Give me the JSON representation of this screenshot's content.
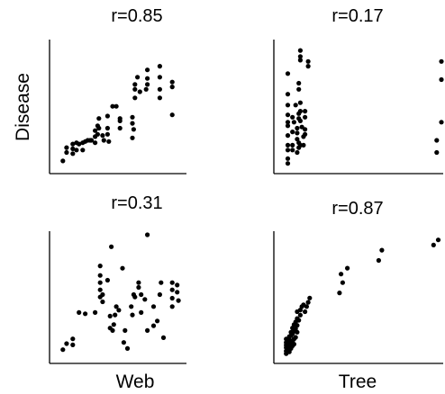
{
  "chart_data": [
    {
      "type": "scatter",
      "title": "r=0.85",
      "xlabel": "",
      "ylabel": "Disease",
      "points": [
        [
          2,
          3
        ],
        [
          5,
          14
        ],
        [
          5,
          10
        ],
        [
          10,
          17
        ],
        [
          10,
          13
        ],
        [
          10,
          9
        ],
        [
          13,
          12
        ],
        [
          13,
          18
        ],
        [
          15,
          17
        ],
        [
          18,
          12
        ],
        [
          18,
          18
        ],
        [
          20,
          19
        ],
        [
          22,
          20
        ],
        [
          24,
          20
        ],
        [
          25,
          20
        ],
        [
          28,
          23
        ],
        [
          28,
          18
        ],
        [
          28,
          28
        ],
        [
          30,
          25
        ],
        [
          30,
          32
        ],
        [
          31,
          38
        ],
        [
          31,
          30
        ],
        [
          34,
          24
        ],
        [
          35,
          20
        ],
        [
          38,
          40
        ],
        [
          38,
          30
        ],
        [
          38,
          25
        ],
        [
          39,
          19
        ],
        [
          42,
          48
        ],
        [
          45,
          48
        ],
        [
          48,
          38
        ],
        [
          48,
          30
        ],
        [
          48,
          36
        ],
        [
          58,
          39
        ],
        [
          58,
          34
        ],
        [
          58,
          22
        ],
        [
          59,
          29
        ],
        [
          60,
          55
        ],
        [
          60,
          62
        ],
        [
          60,
          66
        ],
        [
          62,
          72
        ],
        [
          64,
          60
        ],
        [
          69,
          62
        ],
        [
          70,
          78
        ],
        [
          70,
          71
        ],
        [
          70,
          66
        ],
        [
          80,
          81
        ],
        [
          80,
          72
        ],
        [
          80,
          62
        ],
        [
          80,
          55
        ],
        [
          90,
          68
        ],
        [
          90,
          64
        ],
        [
          90,
          41
        ]
      ]
    },
    {
      "type": "scatter",
      "title": "r=0.17",
      "xlabel": "",
      "ylabel": "",
      "points": [
        [
          2,
          1
        ],
        [
          2,
          5
        ],
        [
          2,
          12
        ],
        [
          2,
          16
        ],
        [
          2,
          24
        ],
        [
          2,
          32
        ],
        [
          2,
          35
        ],
        [
          2,
          41
        ],
        [
          2,
          49
        ],
        [
          2,
          58
        ],
        [
          2,
          75
        ],
        [
          5,
          12
        ],
        [
          5,
          16
        ],
        [
          5,
          27
        ],
        [
          5,
          39
        ],
        [
          6,
          35
        ],
        [
          7,
          49
        ],
        [
          8,
          10
        ],
        [
          8,
          21
        ],
        [
          8,
          26
        ],
        [
          8,
          30
        ],
        [
          9,
          14
        ],
        [
          9,
          18
        ],
        [
          9,
          38
        ],
        [
          9,
          42
        ],
        [
          9,
          62
        ],
        [
          9,
          67
        ],
        [
          10,
          16
        ],
        [
          10,
          36
        ],
        [
          10,
          44
        ],
        [
          10,
          51
        ],
        [
          10,
          86
        ],
        [
          10,
          89
        ],
        [
          10,
          94
        ],
        [
          11,
          31
        ],
        [
          12,
          16
        ],
        [
          12,
          23
        ],
        [
          13,
          25
        ],
        [
          13,
          29
        ],
        [
          13,
          39
        ],
        [
          13,
          44
        ],
        [
          15,
          81
        ],
        [
          15,
          85
        ],
        [
          97,
          10
        ],
        [
          97,
          20
        ],
        [
          100,
          35
        ],
        [
          100,
          70
        ],
        [
          100,
          85
        ]
      ]
    },
    {
      "type": "scatter",
      "title": "r=0.31",
      "xlabel": "Web",
      "ylabel": "",
      "points": [
        [
          2,
          4
        ],
        [
          5,
          9
        ],
        [
          10,
          8
        ],
        [
          10,
          13
        ],
        [
          15,
          35
        ],
        [
          20,
          34
        ],
        [
          28,
          35
        ],
        [
          32,
          48
        ],
        [
          32,
          54
        ],
        [
          32,
          60
        ],
        [
          32,
          66
        ],
        [
          32,
          74
        ],
        [
          34,
          44
        ],
        [
          34,
          50
        ],
        [
          38,
          62
        ],
        [
          40,
          22
        ],
        [
          40,
          32
        ],
        [
          41,
          90
        ],
        [
          42,
          20
        ],
        [
          43,
          25
        ],
        [
          44,
          33
        ],
        [
          45,
          40
        ],
        [
          47,
          37
        ],
        [
          50,
          72
        ],
        [
          51,
          10
        ],
        [
          52,
          20
        ],
        [
          54,
          5
        ],
        [
          57,
          40
        ],
        [
          58,
          33
        ],
        [
          59,
          50
        ],
        [
          60,
          48
        ],
        [
          63,
          56
        ],
        [
          63,
          60
        ],
        [
          65,
          35
        ],
        [
          65,
          50
        ],
        [
          68,
          46
        ],
        [
          70,
          20
        ],
        [
          70,
          100
        ],
        [
          75,
          24
        ],
        [
          75,
          40
        ],
        [
          78,
          28
        ],
        [
          80,
          50
        ],
        [
          81,
          60
        ],
        [
          83,
          14
        ],
        [
          90,
          40
        ],
        [
          90,
          47
        ],
        [
          90,
          54
        ],
        [
          90,
          60
        ],
        [
          94,
          58
        ],
        [
          94,
          52
        ],
        [
          95,
          45
        ]
      ]
    },
    {
      "type": "scatter",
      "title": "r=0.87",
      "xlabel": "Tree",
      "ylabel": "",
      "points": [
        [
          1,
          1
        ],
        [
          1,
          4
        ],
        [
          1,
          8
        ],
        [
          1,
          11
        ],
        [
          1,
          14
        ],
        [
          1,
          18
        ],
        [
          3,
          3
        ],
        [
          3,
          6
        ],
        [
          3,
          9
        ],
        [
          3,
          13
        ],
        [
          3,
          17
        ],
        [
          3,
          21
        ],
        [
          4,
          7
        ],
        [
          4,
          11
        ],
        [
          4,
          16
        ],
        [
          4,
          22
        ],
        [
          4,
          26
        ],
        [
          5,
          10
        ],
        [
          5,
          15
        ],
        [
          5,
          24
        ],
        [
          5,
          31
        ],
        [
          6,
          12
        ],
        [
          6,
          18
        ],
        [
          6,
          27
        ],
        [
          6,
          35
        ],
        [
          7,
          20
        ],
        [
          7,
          30
        ],
        [
          7,
          38
        ],
        [
          8,
          26
        ],
        [
          8,
          34
        ],
        [
          8,
          42
        ],
        [
          8,
          50
        ],
        [
          9,
          40
        ],
        [
          10,
          46
        ],
        [
          10,
          52
        ],
        [
          11,
          56
        ],
        [
          12,
          58
        ],
        [
          13,
          50
        ],
        [
          14,
          56
        ],
        [
          15,
          61
        ],
        [
          16,
          66
        ],
        [
          35,
          72
        ],
        [
          36,
          94
        ],
        [
          37,
          84
        ],
        [
          40,
          101
        ],
        [
          60,
          110
        ],
        [
          62,
          122
        ],
        [
          95,
          128
        ],
        [
          98,
          134
        ]
      ]
    }
  ]
}
